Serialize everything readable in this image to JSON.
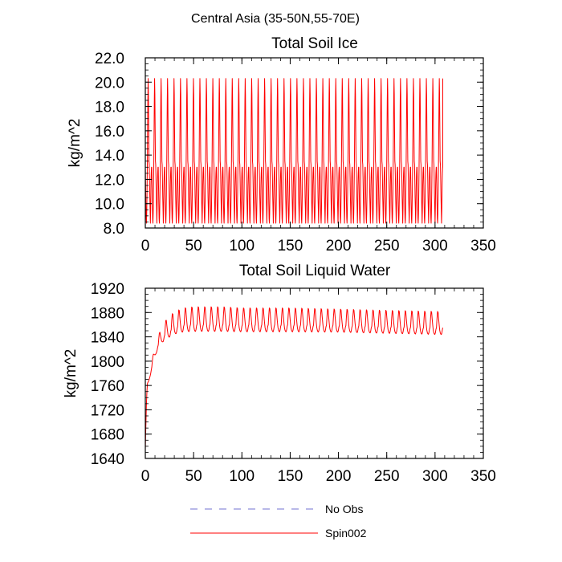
{
  "figure": {
    "suptitle": "Central Asia (35-50N,55-70E)"
  },
  "legend": {
    "placement": "bottom-center",
    "items": [
      {
        "label": "No Obs",
        "color": "#7070d0",
        "dash": "dashed"
      },
      {
        "label": "Spin002",
        "color": "#ff0000",
        "dash": "solid"
      }
    ]
  },
  "chart_data": [
    {
      "type": "line",
      "title": "Total Soil Ice",
      "xlabel": "",
      "ylabel": "kg/m^2",
      "xlim": [
        0,
        350
      ],
      "ylim": [
        8,
        22
      ],
      "xticks": [
        "0",
        "50",
        "100",
        "150",
        "200",
        "250",
        "300",
        "350"
      ],
      "yticks": [
        "8.0",
        "10.0",
        "12.0",
        "14.0",
        "16.0",
        "18.0",
        "20.0",
        "22.0"
      ],
      "grid": false,
      "series": [
        {
          "name": "Spin002",
          "color": "#ff0000",
          "periodic": {
            "x_start": 0,
            "x_end": 308,
            "period": 6.7,
            "cycle_y": [
              13.0,
              11.5,
              10.0,
              8.8,
              8.4,
              9.2,
              10.8,
              12.8,
              15.5,
              18.5,
              20.3,
              19.0,
              16.0,
              13.5,
              13.2,
              12.0,
              10.5,
              9.5,
              8.4,
              9.6,
              11.5,
              12.5,
              13.0
            ]
          }
        }
      ]
    },
    {
      "type": "line",
      "title": "Total Soil Liquid Water",
      "xlabel": "",
      "ylabel": "kg/m^2",
      "xlim": [
        0,
        350
      ],
      "ylim": [
        1640,
        1920
      ],
      "xticks": [
        "0",
        "50",
        "100",
        "150",
        "200",
        "250",
        "300",
        "350"
      ],
      "yticks": [
        "1640",
        "1680",
        "1720",
        "1760",
        "1800",
        "1840",
        "1880",
        "1920"
      ],
      "grid": false,
      "series": [
        {
          "name": "Spin002",
          "color": "#ff0000",
          "x_end": 308,
          "period": 6.7,
          "spinup": {
            "x": [
              0,
              1,
              2,
              4,
              6,
              8,
              10,
              12,
              15,
              18,
              22,
              26,
              30,
              35,
              40,
              50,
              60,
              80,
              100,
              150,
              200,
              250,
              308
            ],
            "base": [
              1655,
              1720,
              1760,
              1772,
              1785,
              1800,
              1812,
              1822,
              1832,
              1840,
              1846,
              1851,
              1855,
              1858,
              1860,
              1861,
              1861,
              1861,
              1860,
              1860,
              1859,
              1857,
              1855
            ],
            "amp": [
              0,
              2,
              4,
              6,
              8,
              10,
              12,
              14,
              17,
              21,
              24,
              26,
              27,
              28,
              29,
              30,
              30,
              30,
              29,
              29,
              28,
              28,
              28
            ]
          }
        }
      ]
    }
  ]
}
